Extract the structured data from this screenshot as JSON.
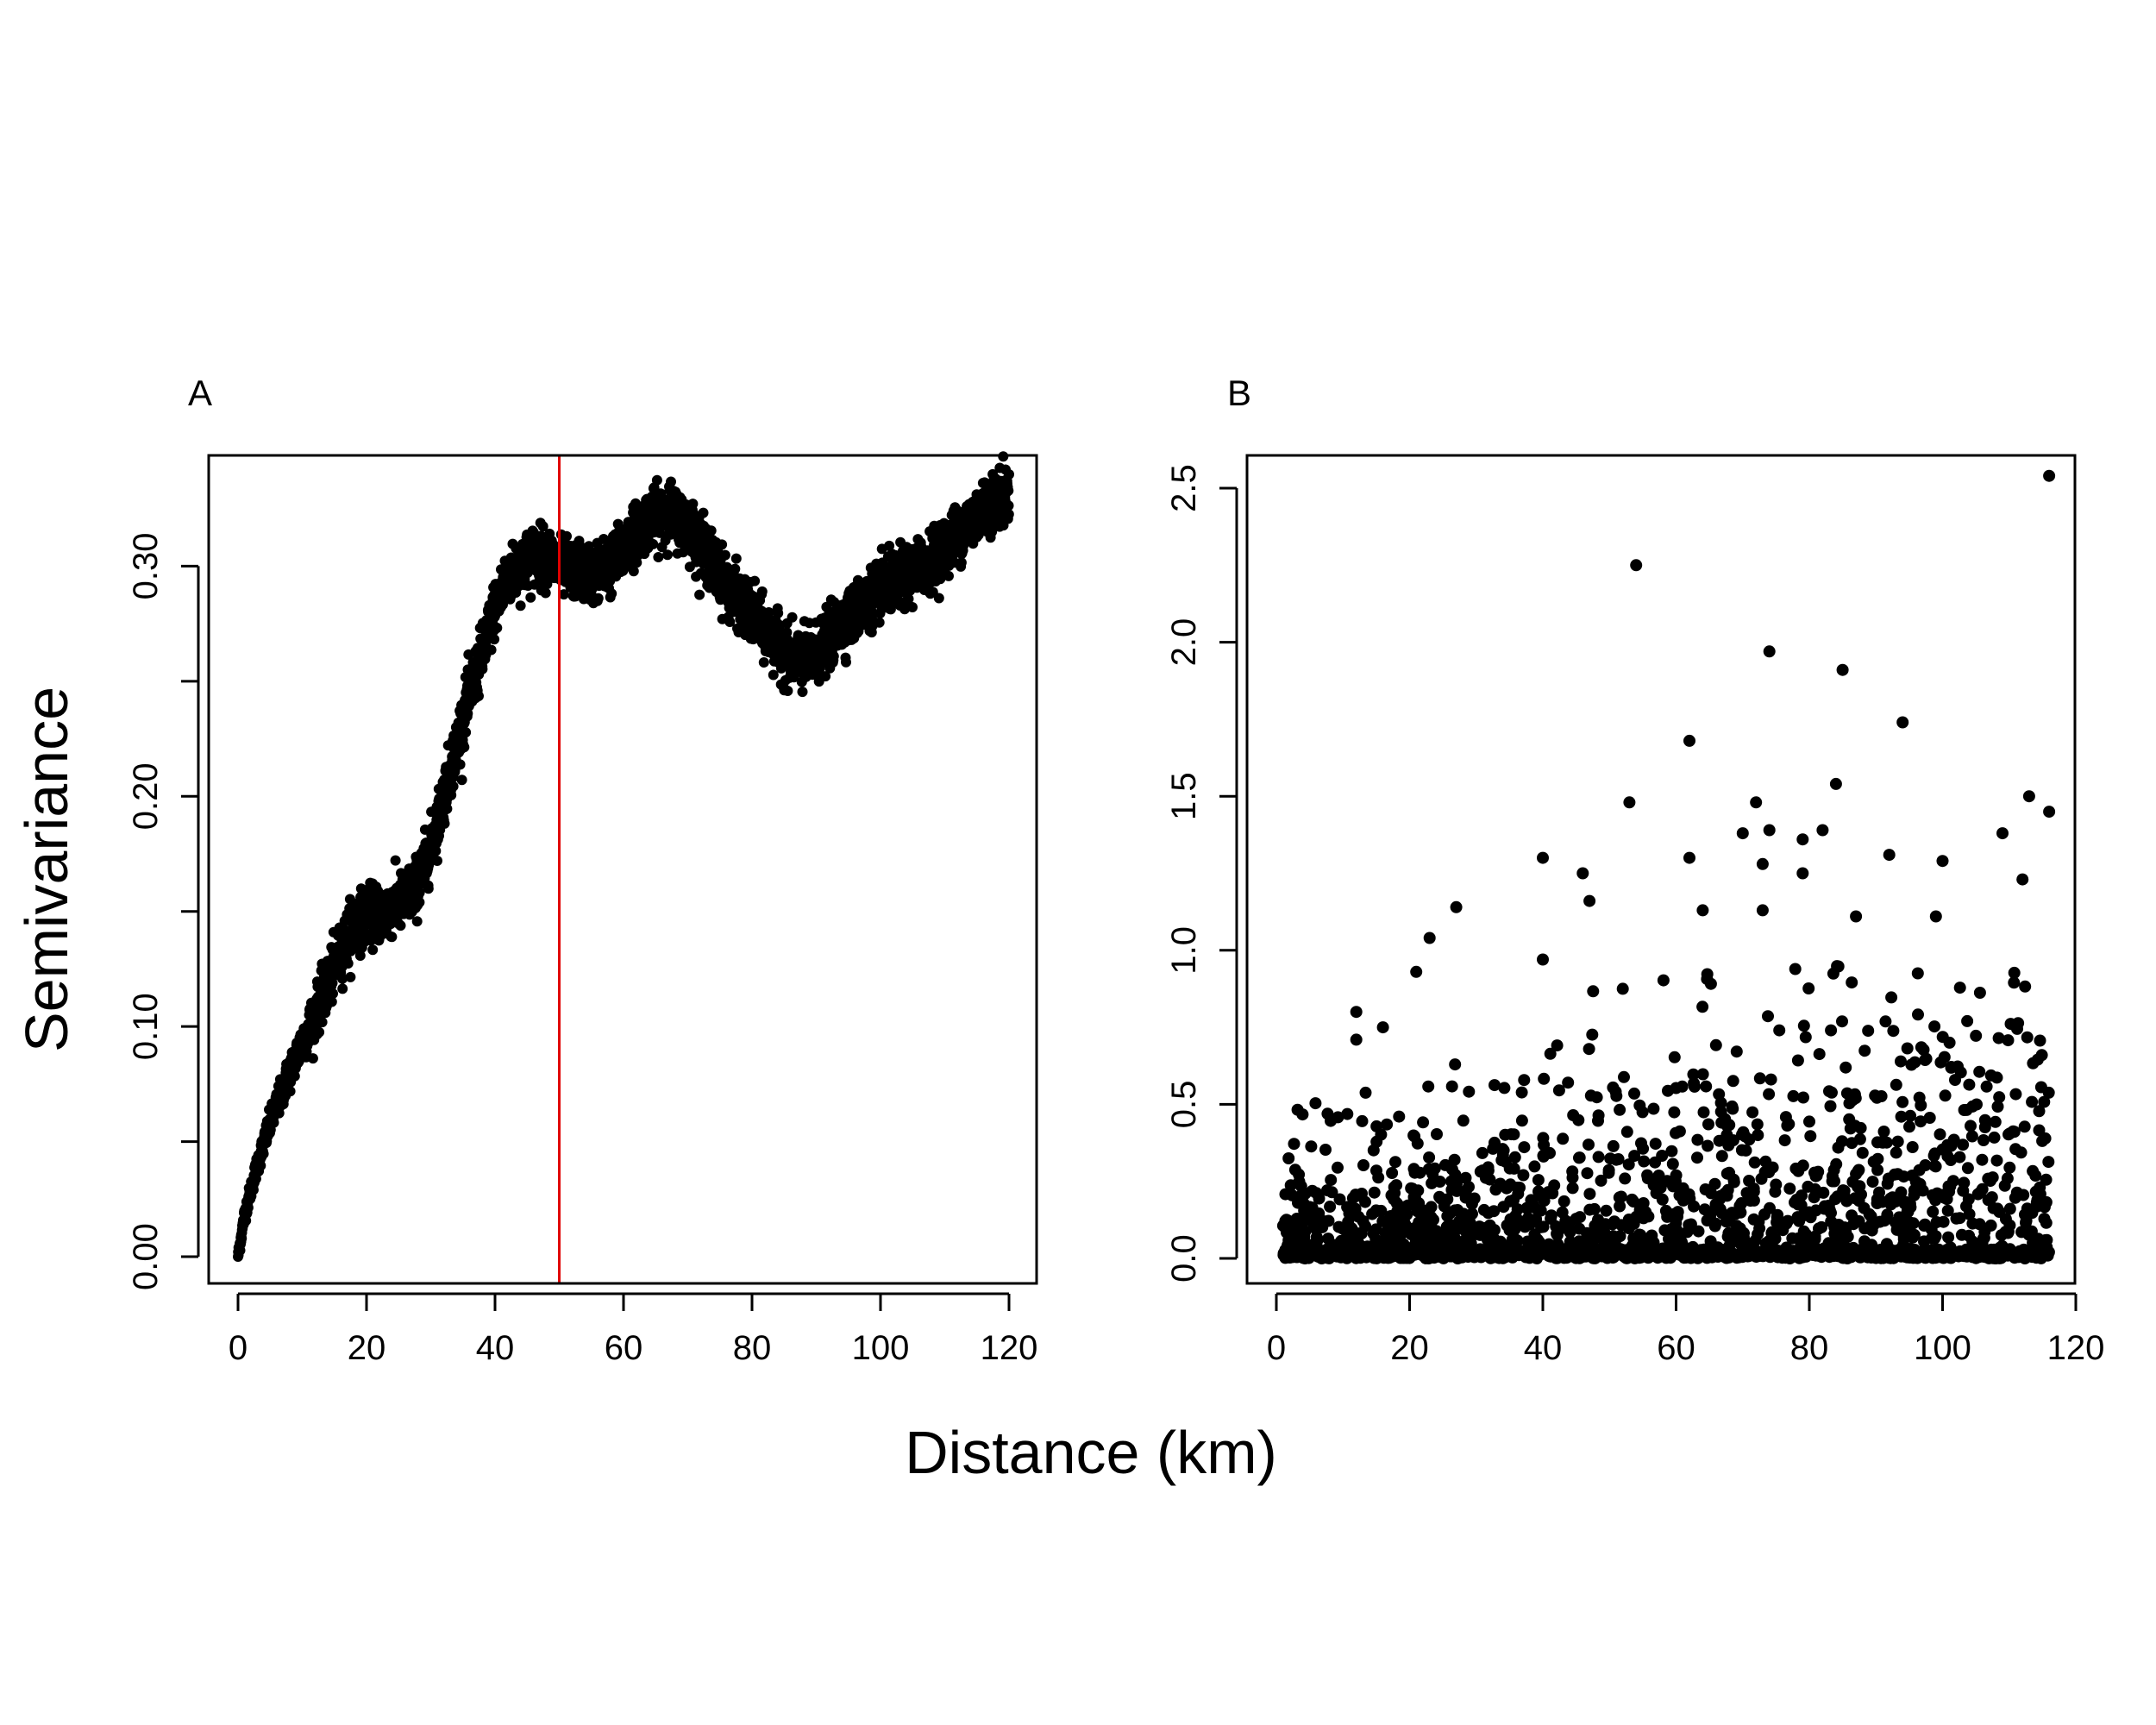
{
  "figure": {
    "xlabel": "Distance (km)",
    "ylabel": "Semivariance"
  },
  "chart_data": [
    {
      "type": "scatter",
      "panel_label": "A",
      "xlabel": "Distance (km)",
      "ylabel": "Semivariance",
      "xlim": [
        0,
        120
      ],
      "ylim": [
        0,
        0.35
      ],
      "x_ticks": [
        0,
        20,
        40,
        60,
        80,
        100,
        120
      ],
      "x_tick_labels": [
        "0",
        "20",
        "40",
        "60",
        "80",
        "100",
        "120"
      ],
      "y_ticks": [
        0.0,
        0.05,
        0.1,
        0.15,
        0.2,
        0.25,
        0.3
      ],
      "y_tick_labels": [
        "0.00",
        "",
        "0.10",
        "",
        "0.20",
        "",
        "0.30"
      ],
      "vline": {
        "x": 50,
        "color": "#e00000"
      },
      "point_color": "#000000",
      "trend": {
        "x": [
          0,
          1,
          3,
          5,
          8,
          10,
          13,
          16,
          18,
          20,
          23,
          26,
          28,
          30,
          32,
          34,
          36,
          38,
          40,
          42,
          44,
          46,
          48,
          50,
          52,
          55,
          58,
          61,
          64,
          67,
          70,
          73,
          76,
          79,
          82,
          85,
          88,
          90,
          93,
          96,
          100,
          104,
          108,
          112,
          116,
          120
        ],
        "y": [
          0.0,
          0.018,
          0.04,
          0.058,
          0.08,
          0.093,
          0.112,
          0.132,
          0.145,
          0.148,
          0.15,
          0.155,
          0.162,
          0.178,
          0.2,
          0.222,
          0.244,
          0.262,
          0.282,
          0.295,
          0.3,
          0.305,
          0.304,
          0.3,
          0.298,
          0.297,
          0.3,
          0.312,
          0.32,
          0.324,
          0.318,
          0.305,
          0.292,
          0.282,
          0.272,
          0.262,
          0.258,
          0.262,
          0.272,
          0.28,
          0.29,
          0.296,
          0.303,
          0.314,
          0.326,
          0.332
        ]
      },
      "n_points": 3600,
      "noise": 0.006
    },
    {
      "type": "scatter",
      "panel_label": "B",
      "xlabel": "Distance (km)",
      "ylabel": "",
      "xlim": [
        0,
        120
      ],
      "ylim": [
        0,
        2.5
      ],
      "x_ticks": [
        0,
        20,
        40,
        60,
        80,
        100,
        120
      ],
      "x_tick_labels": [
        "0",
        "20",
        "40",
        "60",
        "80",
        "100",
        "120"
      ],
      "y_ticks": [
        0.0,
        0.5,
        1.0,
        1.5,
        2.0,
        2.5
      ],
      "y_tick_labels": [
        "0.0",
        "0.5",
        "1.0",
        "1.5",
        "2.0",
        "2.5"
      ],
      "point_color": "#000000",
      "highlight_points": [
        {
          "x": 116,
          "y": 2.54
        },
        {
          "x": 54,
          "y": 2.25
        },
        {
          "x": 74,
          "y": 1.97
        },
        {
          "x": 85,
          "y": 1.91
        },
        {
          "x": 94,
          "y": 1.74
        },
        {
          "x": 62,
          "y": 1.68
        },
        {
          "x": 84,
          "y": 1.54
        },
        {
          "x": 113,
          "y": 1.5
        },
        {
          "x": 53,
          "y": 1.48
        },
        {
          "x": 72,
          "y": 1.48
        },
        {
          "x": 116,
          "y": 1.45
        },
        {
          "x": 70,
          "y": 1.38
        },
        {
          "x": 74,
          "y": 1.39
        },
        {
          "x": 82,
          "y": 1.39
        },
        {
          "x": 109,
          "y": 1.38
        },
        {
          "x": 79,
          "y": 1.36
        },
        {
          "x": 92,
          "y": 1.31
        },
        {
          "x": 40,
          "y": 1.3
        },
        {
          "x": 62,
          "y": 1.3
        },
        {
          "x": 100,
          "y": 1.29
        },
        {
          "x": 73,
          "y": 1.28
        },
        {
          "x": 46,
          "y": 1.25
        },
        {
          "x": 79,
          "y": 1.25
        },
        {
          "x": 112,
          "y": 1.23
        },
        {
          "x": 47,
          "y": 1.16
        },
        {
          "x": 27,
          "y": 1.14
        },
        {
          "x": 64,
          "y": 1.13
        },
        {
          "x": 73,
          "y": 1.13
        },
        {
          "x": 99,
          "y": 1.11
        },
        {
          "x": 87,
          "y": 1.11
        },
        {
          "x": 23,
          "y": 1.04
        },
        {
          "x": 21,
          "y": 0.93
        },
        {
          "x": 12,
          "y": 0.8
        },
        {
          "x": 12,
          "y": 0.71
        },
        {
          "x": 16,
          "y": 0.75
        },
        {
          "x": 40,
          "y": 0.97
        }
      ],
      "n_random": 2200
    }
  ]
}
